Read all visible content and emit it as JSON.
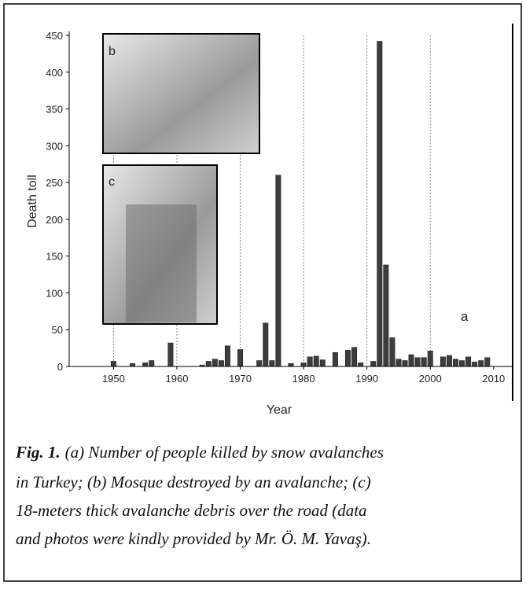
{
  "chart_data": {
    "type": "bar",
    "x_label": "Year",
    "y_label": "Death toll",
    "x": [
      1950,
      1953,
      1955,
      1956,
      1959,
      1964,
      1965,
      1966,
      1967,
      1968,
      1970,
      1973,
      1974,
      1975,
      1976,
      1978,
      1980,
      1981,
      1982,
      1983,
      1985,
      1987,
      1988,
      1989,
      1991,
      1992,
      1993,
      1994,
      1995,
      1996,
      1997,
      1998,
      1999,
      2000,
      2002,
      2003,
      2004,
      2005,
      2006,
      2007,
      2008,
      2009
    ],
    "values": [
      7,
      4,
      5,
      8,
      32,
      2,
      7,
      10,
      8,
      28,
      23,
      8,
      59,
      8,
      260,
      4,
      5,
      13,
      14,
      9,
      19,
      22,
      26,
      5,
      7,
      442,
      138,
      39,
      10,
      8,
      16,
      12,
      12,
      21,
      13,
      15,
      10,
      8,
      13,
      6,
      8,
      12
    ],
    "color": "#3d3d3d",
    "xlim": [
      1943,
      2013
    ],
    "xticks": [
      1950,
      1960,
      1970,
      1980,
      1990,
      2000,
      2010
    ],
    "ylim": [
      0,
      450
    ],
    "yticks": [
      0,
      50,
      100,
      150,
      200,
      250,
      300,
      350,
      400,
      450
    ],
    "x_grid": true,
    "annotations": [
      "a",
      "b",
      "c"
    ]
  },
  "caption": {
    "label": "Fig. 1.",
    "lines": [
      "(a) Number of people killed by snow avalanches",
      "in Turkey; (b) Mosque destroyed by an avalanche; (c)",
      "18-meters thick avalanche debris over the road (data",
      "and photos were kindly provided by Mr. Ö. M. Yavaş)."
    ]
  }
}
